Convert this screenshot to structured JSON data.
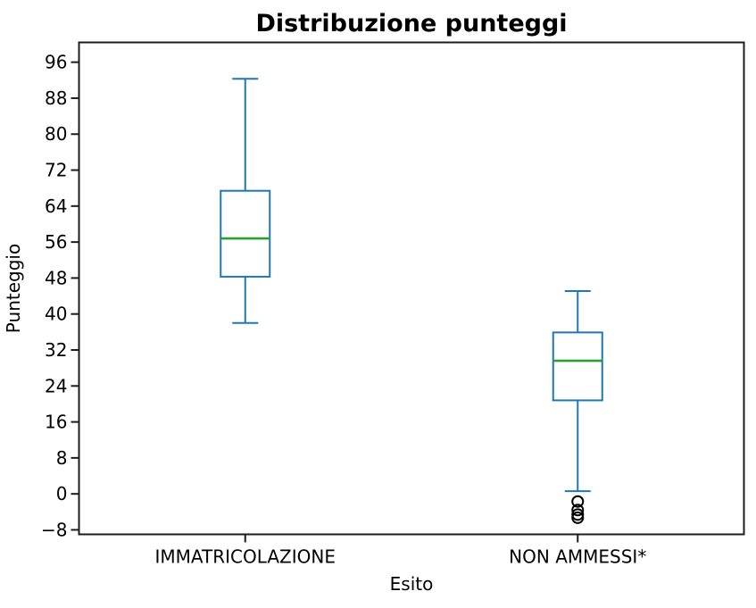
{
  "figure": {
    "background": "#ffffff"
  },
  "chart_data": {
    "type": "boxplot",
    "title": "Distribuzione punteggi",
    "xlabel": "Esito",
    "ylabel": "Punteggio",
    "categories": [
      "IMMATRICOLAZIONE",
      "NON AMMESSI*"
    ],
    "series": [
      {
        "name": "IMMATRICOLAZIONE",
        "whisker_low": 38,
        "q1": 48.3,
        "median": 56.8,
        "q3": 67.4,
        "whisker_high": 92.3,
        "outliers": []
      },
      {
        "name": "NON AMMESSI*",
        "whisker_low": 0.6,
        "q1": 20.8,
        "median": 29.6,
        "q3": 35.9,
        "whisker_high": 45.1,
        "outliers": [
          -1.7,
          -3.6,
          -4.6,
          -5.3
        ]
      }
    ],
    "yticks": [
      -8,
      0,
      8,
      16,
      24,
      32,
      40,
      48,
      56,
      64,
      72,
      80,
      88,
      96
    ],
    "ylim": [
      -9,
      100.4
    ],
    "grid": false,
    "legend": null,
    "colors": {
      "box": "#1f77b4",
      "median": "#2ca02c",
      "outlier": "#000000",
      "axis": "#1c1c1c",
      "text": "#000000"
    }
  }
}
